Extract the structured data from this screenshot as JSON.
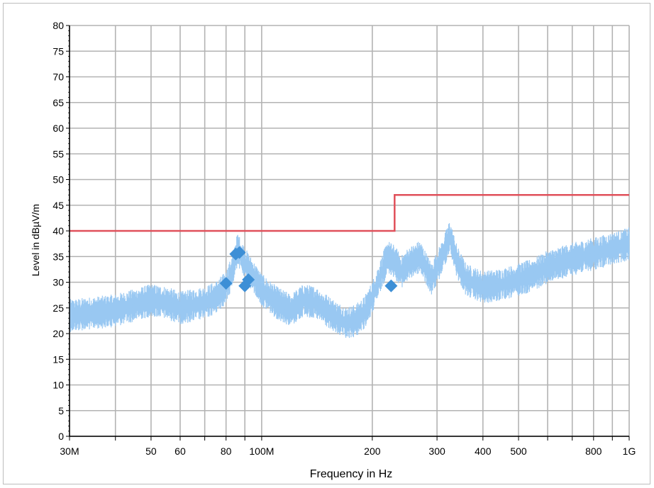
{
  "chart_data": {
    "type": "line",
    "xlabel": "Frequency in Hz",
    "ylabel": "Level in dBµV/m",
    "xscale": "log",
    "xlim": [
      30000000,
      1000000000
    ],
    "ylim": [
      0,
      80
    ],
    "grid": true,
    "x_tick_labels": [
      {
        "value": 30000000,
        "label": "30M"
      },
      {
        "value": 50000000,
        "label": "50"
      },
      {
        "value": 60000000,
        "label": "60"
      },
      {
        "value": 80000000,
        "label": "80"
      },
      {
        "value": 100000000,
        "label": "100M"
      },
      {
        "value": 200000000,
        "label": "200"
      },
      {
        "value": 300000000,
        "label": "300"
      },
      {
        "value": 400000000,
        "label": "400"
      },
      {
        "value": 500000000,
        "label": "500"
      },
      {
        "value": 800000000,
        "label": "800"
      },
      {
        "value": 1000000000,
        "label": "1G"
      }
    ],
    "y_ticks": [
      0,
      5,
      10,
      15,
      20,
      25,
      30,
      35,
      40,
      45,
      50,
      55,
      60,
      65,
      70,
      75,
      80
    ],
    "series": [
      {
        "kind": "limit",
        "color": "#e0505a",
        "points": [
          [
            30000000,
            40
          ],
          [
            230000000,
            40
          ],
          [
            230000000,
            47
          ],
          [
            1000000000,
            47
          ]
        ]
      },
      {
        "kind": "spectrum",
        "color": "#99c8f2",
        "points": [
          [
            30000000,
            23.5
          ],
          [
            35000000,
            24
          ],
          [
            40000000,
            24.5
          ],
          [
            45000000,
            25.5
          ],
          [
            50000000,
            26.5
          ],
          [
            55000000,
            26
          ],
          [
            60000000,
            25
          ],
          [
            65000000,
            25.5
          ],
          [
            70000000,
            26
          ],
          [
            75000000,
            27
          ],
          [
            80000000,
            29
          ],
          [
            83000000,
            32
          ],
          [
            86000000,
            36.5
          ],
          [
            88000000,
            35
          ],
          [
            92000000,
            32.5
          ],
          [
            96000000,
            30.5
          ],
          [
            100000000,
            28.5
          ],
          [
            110000000,
            26
          ],
          [
            120000000,
            24.5
          ],
          [
            130000000,
            26.5
          ],
          [
            140000000,
            26
          ],
          [
            150000000,
            24.5
          ],
          [
            160000000,
            23
          ],
          [
            170000000,
            22
          ],
          [
            180000000,
            22.5
          ],
          [
            190000000,
            24
          ],
          [
            200000000,
            27
          ],
          [
            210000000,
            31
          ],
          [
            220000000,
            35
          ],
          [
            230000000,
            34
          ],
          [
            240000000,
            32
          ],
          [
            250000000,
            33.5
          ],
          [
            270000000,
            35
          ],
          [
            290000000,
            30.5
          ],
          [
            310000000,
            35
          ],
          [
            325000000,
            39
          ],
          [
            340000000,
            34
          ],
          [
            360000000,
            30.5
          ],
          [
            400000000,
            29
          ],
          [
            450000000,
            29.5
          ],
          [
            500000000,
            30.5
          ],
          [
            550000000,
            31.5
          ],
          [
            600000000,
            33
          ],
          [
            700000000,
            34.5
          ],
          [
            800000000,
            35.5
          ],
          [
            900000000,
            36.5
          ],
          [
            1000000000,
            37.5
          ]
        ]
      },
      {
        "kind": "markers",
        "color": "#3d8fd6",
        "points": [
          [
            80000000,
            29.8
          ],
          [
            85000000,
            35.5
          ],
          [
            87000000,
            35.8
          ],
          [
            90000000,
            29.3
          ],
          [
            92000000,
            30.5
          ],
          [
            225000000,
            29.3
          ]
        ]
      }
    ]
  }
}
